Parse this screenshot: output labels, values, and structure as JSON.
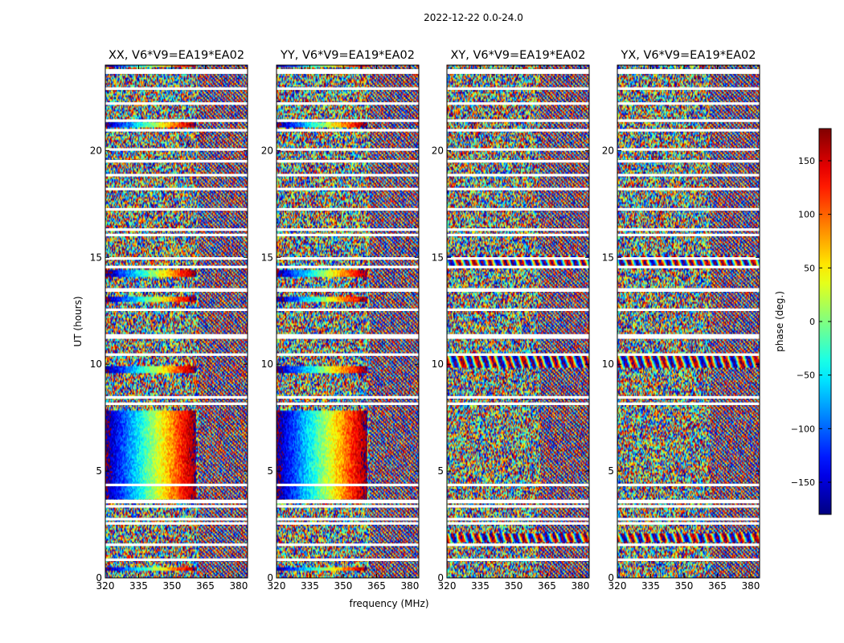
{
  "figure": {
    "suptitle": "2022-12-22 0.0-24.0"
  },
  "chart_data": {
    "type": "heatmap",
    "suptitle": "2022-12-22 0.0-24.0",
    "xlabel": "frequency (MHz)",
    "ylabel": "UT (hours)",
    "xlim": [
      320,
      384
    ],
    "ylim": [
      0,
      24
    ],
    "xticks": [
      320,
      335,
      350,
      365,
      380
    ],
    "yticks": [
      0,
      5,
      10,
      15,
      20
    ],
    "panels": [
      {
        "title": "XX, V6*V9=EA19*EA02",
        "pol": "XX",
        "coherent_hours": [
          [
            0.3,
            0.5
          ],
          [
            3.7,
            7.8
          ],
          [
            9.6,
            9.9
          ],
          [
            12.9,
            13.2
          ],
          [
            14.1,
            14.4
          ],
          [
            23.9,
            24.1
          ],
          [
            21.1,
            21.3
          ]
        ],
        "gradient_limit_MHz": 361
      },
      {
        "title": "YY, V6*V9=EA19*EA02",
        "pol": "YY",
        "coherent_hours": [
          [
            0.3,
            0.5
          ],
          [
            3.7,
            7.8
          ],
          [
            9.6,
            9.9
          ],
          [
            12.9,
            13.2
          ],
          [
            14.1,
            14.4
          ],
          [
            23.9,
            24.1
          ],
          [
            21.1,
            21.3
          ]
        ],
        "gradient_limit_MHz": 361
      },
      {
        "title": "XY, V6*V9=EA19*EA02",
        "pol": "XY",
        "coherent_hours": [],
        "gradient_limit_MHz": 361
      },
      {
        "title": "YX, V6*V9=EA19*EA02",
        "pol": "YX",
        "coherent_hours": [],
        "gradient_limit_MHz": 361
      }
    ],
    "flagged_hours": [
      0.85,
      1.55,
      2.55,
      2.75,
      3.35,
      3.55,
      3.6,
      4.35,
      8.15,
      8.45,
      10.45,
      11.25,
      11.35,
      12.55,
      13.45,
      13.5,
      14.55,
      14.95,
      16.05,
      16.3,
      17.25,
      18.2,
      18.85,
      19.5,
      20.05,
      20.95,
      21.4,
      22.2,
      22.9,
      23.65,
      23.75
    ],
    "colorbar": {
      "label": "phase (deg.)",
      "vmin": -180,
      "vmax": 180,
      "ticks": [
        150,
        100,
        50,
        0,
        -50,
        -100,
        -150
      ],
      "colormap": "jet"
    }
  }
}
